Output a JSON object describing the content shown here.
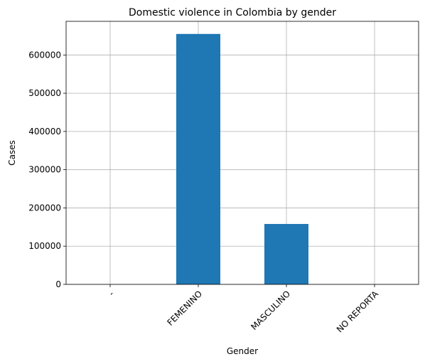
{
  "chart_data": {
    "type": "bar",
    "title": "Domestic violence in Colombia by gender",
    "xlabel": "Gender",
    "ylabel": "Cases",
    "categories": [
      "-",
      "FEMENINO",
      "MASCULINO",
      "NO REPORTA"
    ],
    "values": [
      5,
      655000,
      158000,
      30
    ],
    "ylim": [
      0,
      688000
    ],
    "yticks": [
      0,
      100000,
      200000,
      300000,
      400000,
      500000,
      600000
    ],
    "yticks_labels": [
      "0",
      "100000",
      "200000",
      "300000",
      "400000",
      "500000",
      "600000"
    ],
    "grid": true,
    "bar_color": "#1f77b4"
  }
}
